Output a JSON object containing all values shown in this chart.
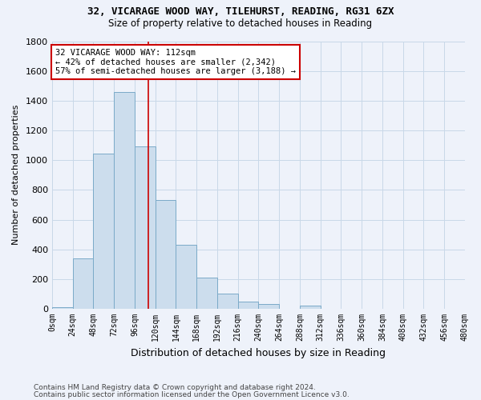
{
  "title1": "32, VICARAGE WOOD WAY, TILEHURST, READING, RG31 6ZX",
  "title2": "Size of property relative to detached houses in Reading",
  "xlabel": "Distribution of detached houses by size in Reading",
  "ylabel": "Number of detached properties",
  "footnote1": "Contains HM Land Registry data © Crown copyright and database right 2024.",
  "footnote2": "Contains public sector information licensed under the Open Government Licence v3.0.",
  "bar_color": "#ccdded",
  "bar_edge_color": "#7aaac8",
  "grid_color": "#c8d8e8",
  "background_color": "#eef2fa",
  "property_sqm": 112,
  "property_line_color": "#cc0000",
  "annotation_line1": "32 VICARAGE WOOD WAY: 112sqm",
  "annotation_line2": "← 42% of detached houses are smaller (2,342)",
  "annotation_line3": "57% of semi-detached houses are larger (3,188) →",
  "annotation_box_color": "#ffffff",
  "annotation_box_edge": "#cc0000",
  "bin_edges": [
    0,
    24,
    48,
    72,
    96,
    120,
    144,
    168,
    192,
    216,
    240,
    264,
    288,
    312,
    336,
    360,
    384,
    408,
    432,
    456,
    480
  ],
  "bin_labels": [
    "0sqm",
    "24sqm",
    "48sqm",
    "72sqm",
    "96sqm",
    "120sqm",
    "144sqm",
    "168sqm",
    "192sqm",
    "216sqm",
    "240sqm",
    "264sqm",
    "288sqm",
    "312sqm",
    "336sqm",
    "360sqm",
    "384sqm",
    "408sqm",
    "432sqm",
    "456sqm",
    "480sqm"
  ],
  "counts": [
    10,
    340,
    1045,
    1460,
    1090,
    730,
    430,
    210,
    100,
    50,
    35,
    0,
    20,
    0,
    0,
    0,
    0,
    0,
    0,
    0
  ],
  "ylim": [
    0,
    1800
  ],
  "yticks": [
    0,
    200,
    400,
    600,
    800,
    1000,
    1200,
    1400,
    1600,
    1800
  ]
}
